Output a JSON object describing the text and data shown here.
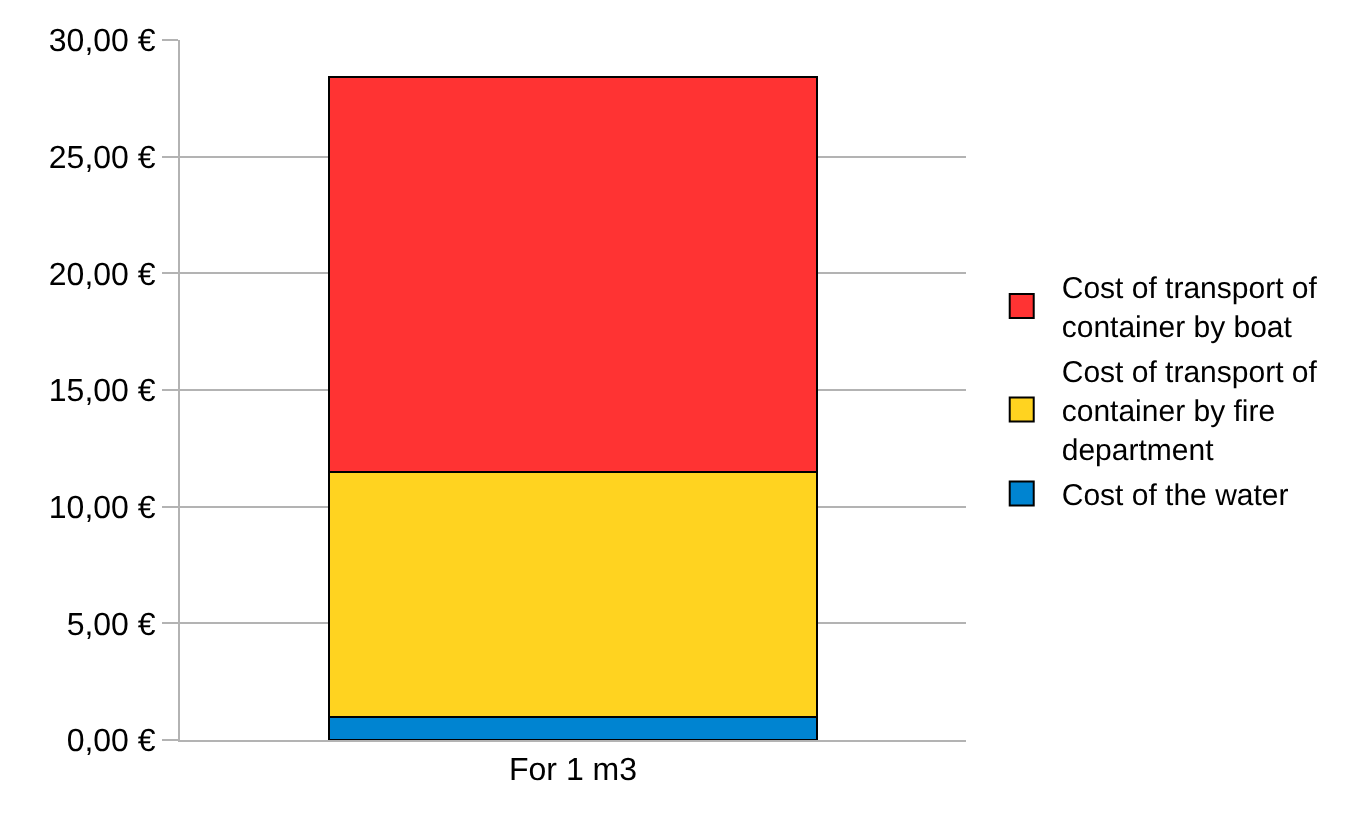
{
  "chart_data": {
    "type": "bar",
    "stacked": true,
    "categories": [
      "For 1 m3"
    ],
    "series": [
      {
        "name": "Cost of the water",
        "color": "#0084d1",
        "values": [
          1.0
        ]
      },
      {
        "name": "Cost of transport of container by fire department",
        "color": "#ffd320",
        "values": [
          10.5
        ]
      },
      {
        "name": "Cost of transport of container by boat",
        "color": "#ff3333",
        "values": [
          16.9
        ]
      }
    ],
    "ylim": [
      0,
      30
    ],
    "yticks": [
      {
        "value": 0,
        "label": "0,00 €"
      },
      {
        "value": 5,
        "label": "5,00 €"
      },
      {
        "value": 10,
        "label": "10,00 €"
      },
      {
        "value": 15,
        "label": "15,00 €"
      },
      {
        "value": 20,
        "label": "20,00 €"
      },
      {
        "value": 25,
        "label": "25,00 €"
      },
      {
        "value": 30,
        "label": "30,00 €"
      }
    ],
    "grid": "y",
    "legend": "right"
  }
}
